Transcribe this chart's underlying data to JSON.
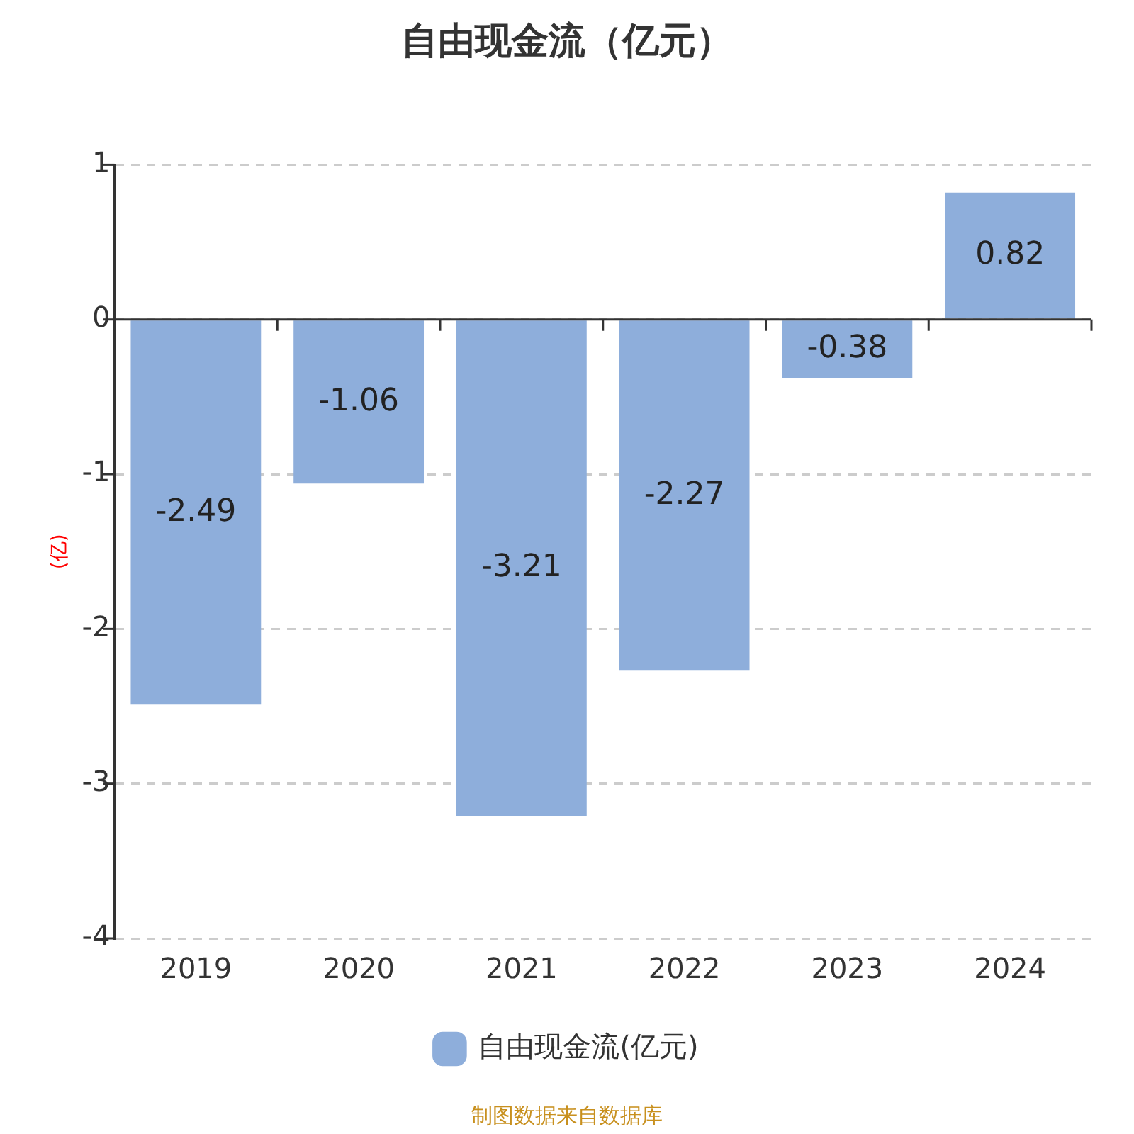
{
  "chart_data": {
    "type": "bar",
    "title": "自由现金流（亿元）",
    "ylabel": "(亿)",
    "categories": [
      "2019",
      "2020",
      "2021",
      "2022",
      "2023",
      "2024"
    ],
    "series": [
      {
        "name": "自由现金流(亿元)",
        "color": "#8eaedb",
        "values": [
          -2.49,
          -1.06,
          -3.21,
          -2.27,
          -0.38,
          0.82
        ]
      }
    ],
    "ylim": [
      -4,
      1
    ],
    "yticks": [
      -4,
      -3,
      -2,
      -1,
      0,
      1
    ],
    "grid": "y",
    "legend": "bottom",
    "data_labels": true,
    "annotations": [
      "制图数据来自数据库"
    ]
  }
}
